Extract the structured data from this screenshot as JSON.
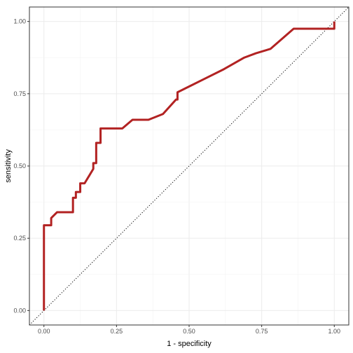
{
  "chart_data": {
    "type": "line",
    "xlabel": "1 - specificity",
    "ylabel": "sensitivity",
    "xlim": [
      -0.05,
      1.05
    ],
    "ylim": [
      -0.05,
      1.05
    ],
    "x_ticks": [
      0,
      0.25,
      0.5,
      0.75,
      1
    ],
    "x_tick_labels": [
      "0.00",
      "0.25",
      "0.50",
      "0.75",
      "1.00"
    ],
    "y_ticks": [
      0,
      0.25,
      0.5,
      0.75,
      1
    ],
    "y_tick_labels": [
      "0.00",
      "0.25",
      "0.50",
      "0.75",
      "1.00"
    ],
    "grid": true,
    "reference_line": {
      "from": [
        0,
        0
      ],
      "to": [
        1,
        1
      ],
      "style": "dotted",
      "color": "#000000"
    },
    "series": [
      {
        "color": "#b22222",
        "x": [
          0.0,
          0.0,
          0.025,
          0.025,
          0.045,
          0.1,
          0.1,
          0.11,
          0.11,
          0.125,
          0.125,
          0.14,
          0.17,
          0.17,
          0.18,
          0.18,
          0.195,
          0.195,
          0.27,
          0.305,
          0.36,
          0.41,
          0.455,
          0.46,
          0.46,
          0.48,
          0.5,
          0.55,
          0.62,
          0.69,
          0.73,
          0.78,
          0.86,
          0.93,
          1.0,
          1.0
        ],
        "y": [
          0.0,
          0.295,
          0.295,
          0.32,
          0.34,
          0.34,
          0.39,
          0.39,
          0.41,
          0.41,
          0.44,
          0.44,
          0.49,
          0.51,
          0.51,
          0.58,
          0.58,
          0.63,
          0.63,
          0.66,
          0.66,
          0.68,
          0.73,
          0.73,
          0.755,
          0.765,
          0.775,
          0.8,
          0.835,
          0.875,
          0.89,
          0.905,
          0.975,
          0.975,
          0.975,
          1.0
        ]
      }
    ]
  }
}
